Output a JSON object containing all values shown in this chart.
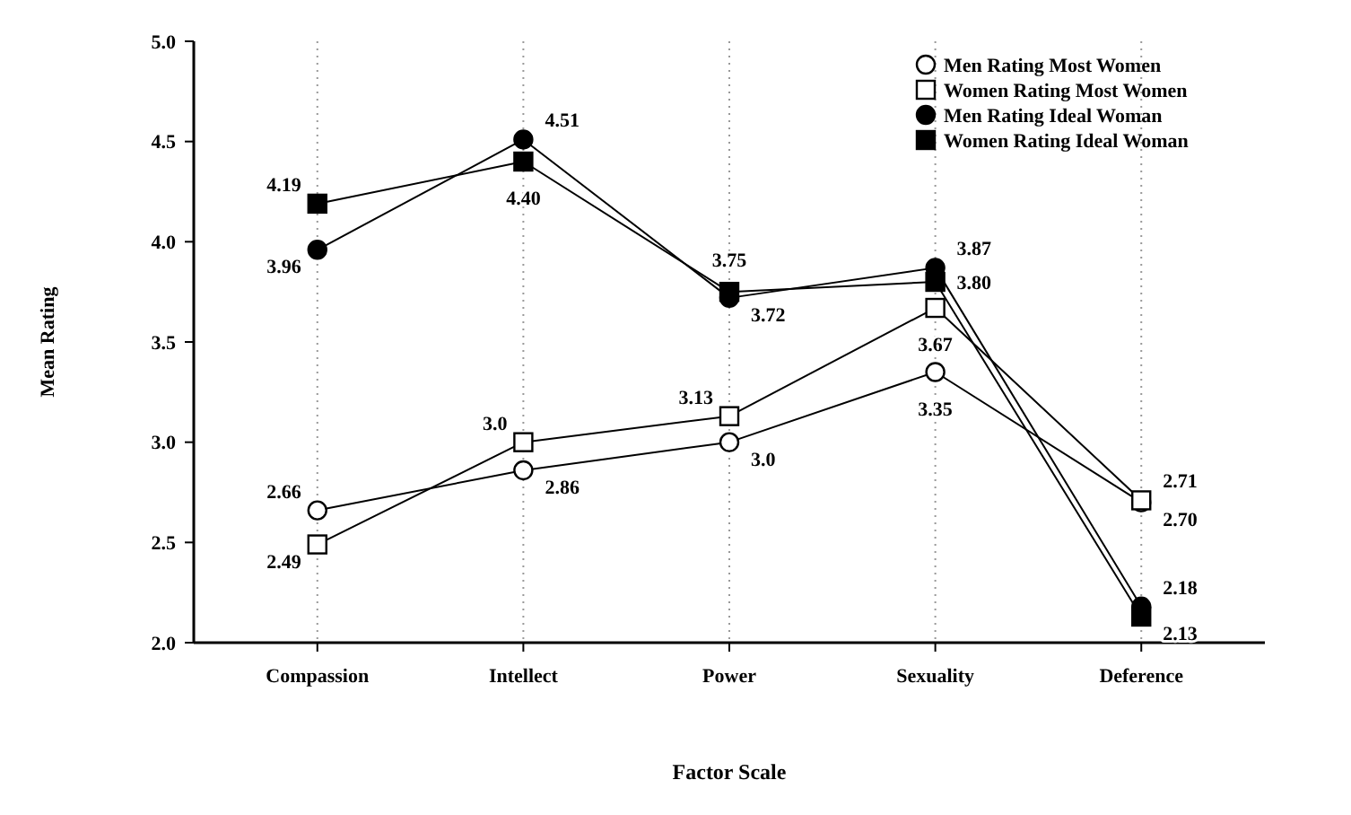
{
  "chart_data": {
    "type": "line",
    "xlabel": "Factor Scale",
    "ylabel": "Mean Rating",
    "categories": [
      "Compassion",
      "Intellect",
      "Power",
      "Sexuality",
      "Deference"
    ],
    "ylim": [
      2,
      5
    ],
    "yticks": [
      {
        "value": 2,
        "label": "2.0"
      },
      {
        "value": 2.5,
        "label": "2.5"
      },
      {
        "value": 3,
        "label": "3.0"
      },
      {
        "value": 3.5,
        "label": "3.5"
      },
      {
        "value": 4,
        "label": "4.0"
      },
      {
        "value": 4.5,
        "label": "4.5"
      },
      {
        "value": 5,
        "label": "5.0"
      }
    ],
    "grid": "x",
    "legend": "top right",
    "line_style": "solid",
    "series": [
      {
        "name": "Men Rating Most Women",
        "color": "#000000",
        "marker": "circle-open",
        "values": [
          2.66,
          2.86,
          3.0,
          3.35,
          2.7
        ],
        "value_labels": [
          "2.66",
          "2.86",
          "3.0",
          "3.35",
          "2.70"
        ]
      },
      {
        "name": "Women Rating Most Women",
        "color": "#000000",
        "marker": "square-open",
        "values": [
          2.49,
          3.0,
          3.13,
          3.67,
          2.71
        ],
        "value_labels": [
          "2.49",
          "3.0",
          "3.13",
          "3.67",
          "2.71"
        ]
      },
      {
        "name": "Men Rating Ideal Woman",
        "color": "#000000",
        "marker": "circle",
        "values": [
          3.96,
          4.51,
          3.72,
          3.87,
          2.18
        ],
        "value_labels": [
          "3.96",
          "4.51",
          "3.72",
          "3.87",
          "2.18"
        ]
      },
      {
        "name": "Women Rating Ideal Woman",
        "color": "#000000",
        "marker": "square",
        "values": [
          4.19,
          4.4,
          3.75,
          3.8,
          2.13
        ],
        "value_labels": [
          "4.19",
          "4.40",
          "3.75",
          "3.80",
          "2.13"
        ]
      }
    ]
  }
}
